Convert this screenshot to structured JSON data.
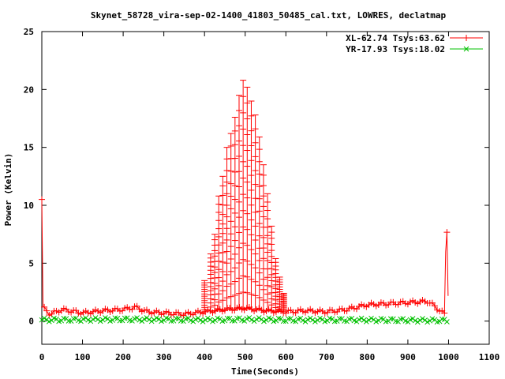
{
  "chart_data": {
    "type": "line",
    "title": "Skynet_58728_vira-sep-02-1400_41803_50485_cal.txt, LOWRES, declatmap",
    "xlabel": "Time(Seconds)",
    "ylabel": "Power (Kelvin)",
    "xlim": [
      0,
      1100
    ],
    "ylim": [
      -2,
      25
    ],
    "x_ticks": [
      0,
      100,
      200,
      300,
      400,
      500,
      600,
      700,
      800,
      900,
      1000,
      1100
    ],
    "y_ticks": [
      0,
      5,
      10,
      15,
      20,
      25
    ],
    "grid": false,
    "legend_position": "top-right",
    "colors": {
      "XL": "#ff0000",
      "YR": "#00c000"
    },
    "series": [
      {
        "name": "XL-62.74 Tsys:63.62",
        "marker": "plus",
        "baseline_points": [
          [
            0,
            10.5
          ],
          [
            2,
            1.2
          ],
          [
            20,
            0.6
          ],
          [
            50,
            1.0
          ],
          [
            100,
            0.7
          ],
          [
            150,
            0.9
          ],
          [
            200,
            1.0
          ],
          [
            230,
            1.2
          ],
          [
            260,
            0.8
          ],
          [
            300,
            0.7
          ],
          [
            350,
            0.6
          ],
          [
            400,
            0.8
          ],
          [
            450,
            1.0
          ],
          [
            500,
            1.1
          ],
          [
            550,
            0.9
          ],
          [
            600,
            0.8
          ],
          [
            650,
            0.9
          ],
          [
            700,
            0.8
          ],
          [
            750,
            1.0
          ],
          [
            800,
            1.4
          ],
          [
            850,
            1.5
          ],
          [
            900,
            1.6
          ],
          [
            950,
            1.7
          ],
          [
            990,
            0.6
          ],
          [
            995,
            9.6
          ],
          [
            1000,
            0.5
          ]
        ],
        "peak_spikes": [
          [
            400,
            3.5
          ],
          [
            415,
            5.8
          ],
          [
            425,
            7.5
          ],
          [
            435,
            10.8
          ],
          [
            445,
            12.5
          ],
          [
            455,
            15.0
          ],
          [
            465,
            16.2
          ],
          [
            475,
            17.6
          ],
          [
            485,
            19.5
          ],
          [
            495,
            20.8
          ],
          [
            505,
            20.2
          ],
          [
            515,
            19.0
          ],
          [
            525,
            17.8
          ],
          [
            535,
            15.9
          ],
          [
            545,
            13.5
          ],
          [
            555,
            11.0
          ],
          [
            565,
            8.2
          ],
          [
            575,
            5.4
          ],
          [
            585,
            3.8
          ],
          [
            595,
            2.4
          ]
        ]
      },
      {
        "name": "YR-17.93 Tsys:18.02",
        "marker": "x",
        "baseline_points": [
          [
            0,
            0.1
          ],
          [
            200,
            0.15
          ],
          [
            400,
            0.1
          ],
          [
            500,
            0.15
          ],
          [
            600,
            0.1
          ],
          [
            800,
            0.1
          ],
          [
            1000,
            0.05
          ]
        ]
      }
    ]
  }
}
